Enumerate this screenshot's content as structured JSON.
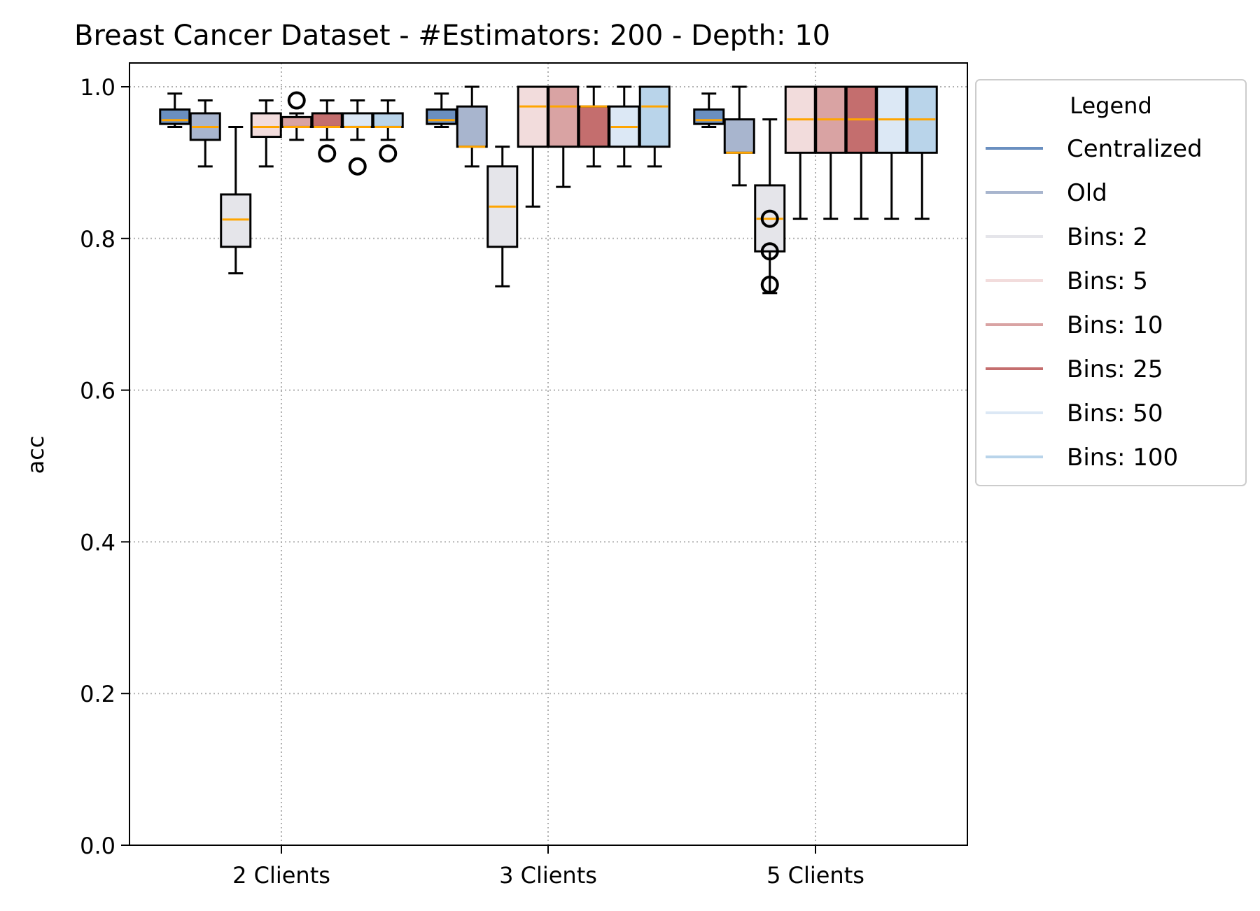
{
  "chart_data": {
    "type": "boxplot",
    "title": "Breast Cancer Dataset - #Estimators: 200 - Depth: 10",
    "xlabel": "",
    "ylabel": "acc",
    "ylim": [
      0.0,
      1.0
    ],
    "yticks": [
      "0.0",
      "0.2",
      "0.4",
      "0.6",
      "0.8",
      "1.0"
    ],
    "grid": true,
    "legend_title": "Legend",
    "legend_position": "outside-right",
    "categories": [
      "2 Clients",
      "3 Clients",
      "5 Clients"
    ],
    "series": [
      {
        "name": "Centralized",
        "color": "#6a8fc0",
        "boxes": [
          {
            "wlow": 0.947,
            "q1": 0.951,
            "median": 0.956,
            "q3": 0.97,
            "whigh": 0.991,
            "fliers": []
          },
          {
            "wlow": 0.947,
            "q1": 0.951,
            "median": 0.956,
            "q3": 0.97,
            "whigh": 0.991,
            "fliers": []
          },
          {
            "wlow": 0.947,
            "q1": 0.951,
            "median": 0.956,
            "q3": 0.97,
            "whigh": 0.991,
            "fliers": []
          }
        ]
      },
      {
        "name": "Old",
        "color": "#a8b5ce",
        "boxes": [
          {
            "wlow": 0.895,
            "q1": 0.93,
            "median": 0.947,
            "q3": 0.965,
            "whigh": 0.982,
            "fliers": []
          },
          {
            "wlow": 0.895,
            "q1": 0.921,
            "median": 0.921,
            "q3": 0.974,
            "whigh": 1.0,
            "fliers": []
          },
          {
            "wlow": 0.87,
            "q1": 0.913,
            "median": 0.913,
            "q3": 0.957,
            "whigh": 1.0,
            "fliers": []
          }
        ]
      },
      {
        "name": "Bins: 2",
        "color": "#e5e5ea",
        "boxes": [
          {
            "wlow": 0.754,
            "q1": 0.789,
            "median": 0.825,
            "q3": 0.858,
            "whigh": 0.947,
            "fliers": []
          },
          {
            "wlow": 0.737,
            "q1": 0.789,
            "median": 0.842,
            "q3": 0.895,
            "whigh": 0.921,
            "fliers": []
          },
          {
            "wlow": 0.728,
            "q1": 0.783,
            "median": 0.826,
            "q3": 0.87,
            "whigh": 0.957,
            "fliers": [
              0.826,
              0.783,
              0.739
            ]
          }
        ]
      },
      {
        "name": "Bins: 5",
        "color": "#f2dcdc",
        "boxes": [
          {
            "wlow": 0.895,
            "q1": 0.934,
            "median": 0.947,
            "q3": 0.965,
            "whigh": 0.982,
            "fliers": []
          },
          {
            "wlow": 0.842,
            "q1": 0.921,
            "median": 0.974,
            "q3": 1.0,
            "whigh": 1.0,
            "fliers": []
          },
          {
            "wlow": 0.826,
            "q1": 0.913,
            "median": 0.957,
            "q3": 1.0,
            "whigh": 1.0,
            "fliers": []
          }
        ]
      },
      {
        "name": "Bins: 10",
        "color": "#d9a3a3",
        "boxes": [
          {
            "wlow": 0.93,
            "q1": 0.947,
            "median": 0.947,
            "q3": 0.96,
            "whigh": 0.965,
            "fliers": [
              0.982
            ]
          },
          {
            "wlow": 0.868,
            "q1": 0.921,
            "median": 0.974,
            "q3": 1.0,
            "whigh": 1.0,
            "fliers": []
          },
          {
            "wlow": 0.826,
            "q1": 0.913,
            "median": 0.957,
            "q3": 1.0,
            "whigh": 1.0,
            "fliers": []
          }
        ]
      },
      {
        "name": "Bins: 25",
        "color": "#c46e6e",
        "boxes": [
          {
            "wlow": 0.93,
            "q1": 0.947,
            "median": 0.947,
            "q3": 0.965,
            "whigh": 0.982,
            "fliers": [
              0.912
            ]
          },
          {
            "wlow": 0.895,
            "q1": 0.921,
            "median": 0.974,
            "q3": 0.974,
            "whigh": 1.0,
            "fliers": []
          },
          {
            "wlow": 0.826,
            "q1": 0.913,
            "median": 0.957,
            "q3": 1.0,
            "whigh": 1.0,
            "fliers": []
          }
        ]
      },
      {
        "name": "Bins: 50",
        "color": "#dce8f5",
        "boxes": [
          {
            "wlow": 0.93,
            "q1": 0.947,
            "median": 0.947,
            "q3": 0.965,
            "whigh": 0.982,
            "fliers": [
              0.895
            ]
          },
          {
            "wlow": 0.895,
            "q1": 0.921,
            "median": 0.947,
            "q3": 0.974,
            "whigh": 1.0,
            "fliers": []
          },
          {
            "wlow": 0.826,
            "q1": 0.913,
            "median": 0.957,
            "q3": 1.0,
            "whigh": 1.0,
            "fliers": []
          }
        ]
      },
      {
        "name": "Bins: 100",
        "color": "#b9d4ea",
        "boxes": [
          {
            "wlow": 0.93,
            "q1": 0.947,
            "median": 0.947,
            "q3": 0.965,
            "whigh": 0.982,
            "fliers": [
              0.912
            ]
          },
          {
            "wlow": 0.895,
            "q1": 0.921,
            "median": 0.974,
            "q3": 1.0,
            "whigh": 1.0,
            "fliers": []
          },
          {
            "wlow": 0.826,
            "q1": 0.913,
            "median": 0.957,
            "q3": 1.0,
            "whigh": 1.0,
            "fliers": []
          }
        ]
      }
    ]
  }
}
